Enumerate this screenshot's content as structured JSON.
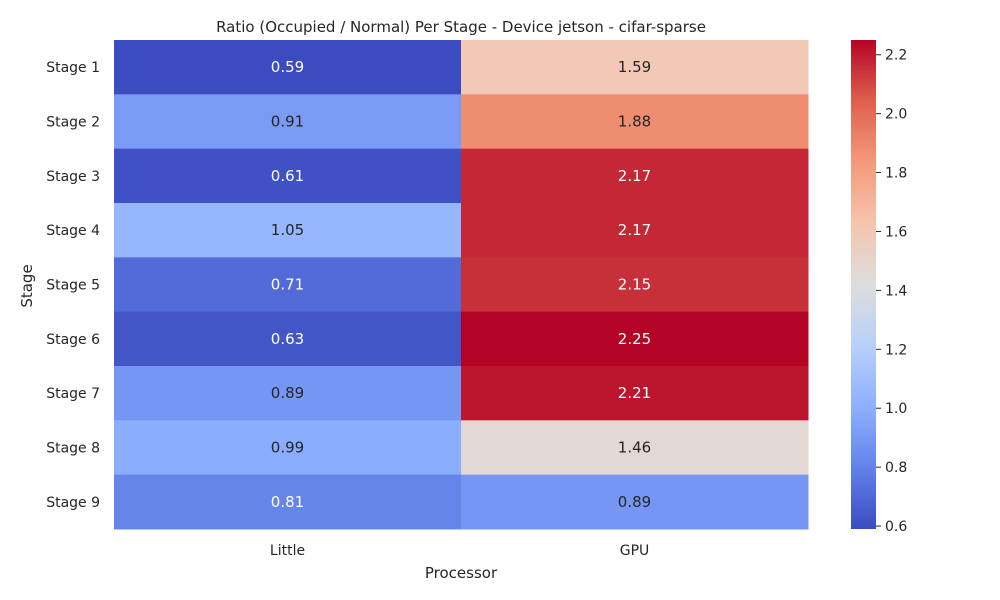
{
  "chart_data": {
    "type": "heatmap",
    "title": "Ratio (Occupied / Normal) Per Stage - Device jetson - cifar-sparse",
    "xlabel": "Processor",
    "ylabel": "Stage",
    "x_categories": [
      "Little",
      "GPU"
    ],
    "y_categories": [
      "Stage 1",
      "Stage 2",
      "Stage 3",
      "Stage 4",
      "Stage 5",
      "Stage 6",
      "Stage 7",
      "Stage 8",
      "Stage 9"
    ],
    "values": [
      [
        0.59,
        1.59
      ],
      [
        0.91,
        1.88
      ],
      [
        0.61,
        2.17
      ],
      [
        1.05,
        2.17
      ],
      [
        0.71,
        2.15
      ],
      [
        0.63,
        2.25
      ],
      [
        0.89,
        2.21
      ],
      [
        0.99,
        1.46
      ],
      [
        0.81,
        0.89
      ]
    ],
    "colormap": "coolwarm",
    "color_range": [
      0.59,
      2.25
    ],
    "colorbar_ticks": [
      "0.6",
      "0.8",
      "1.0",
      "1.2",
      "1.4",
      "1.6",
      "1.8",
      "2.0",
      "2.2"
    ],
    "annotations": true
  }
}
